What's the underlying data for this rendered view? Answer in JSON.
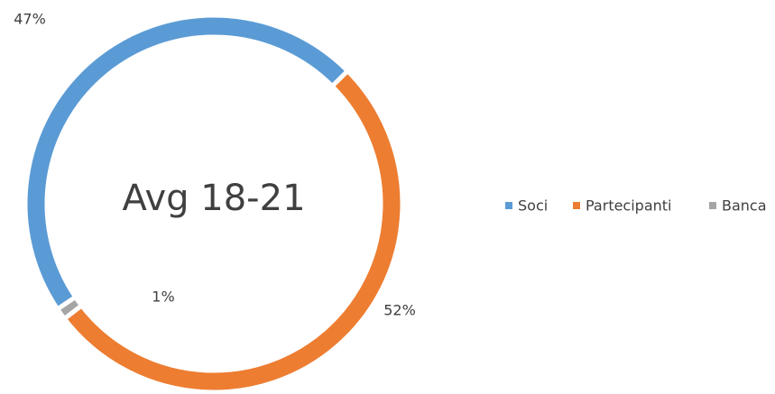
{
  "chart_data": {
    "type": "donut",
    "title": "Avg 18-21",
    "categories": [
      "Soci",
      "Partecipanti",
      "Banca"
    ],
    "values": [
      47,
      52,
      1
    ],
    "value_labels": [
      "47%",
      "52%",
      "1%"
    ],
    "colors": [
      "#5b9bd5",
      "#ed7d31",
      "#a5a5a5"
    ],
    "legend": "right"
  }
}
